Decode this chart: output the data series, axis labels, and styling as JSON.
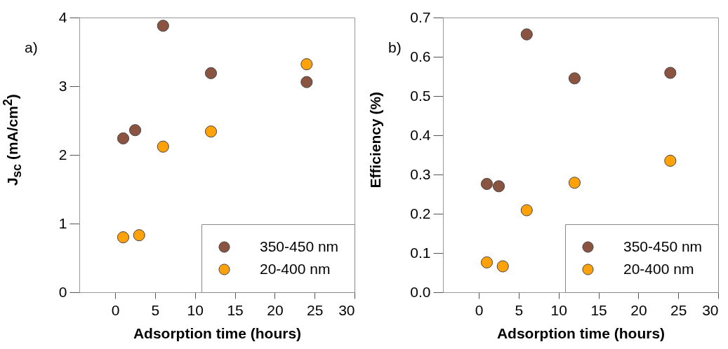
{
  "chart_data": [
    {
      "type": "scatter",
      "title": "a)",
      "xlabel": "Adsorption time (hours)",
      "ylabel": "J$_{sc}$ (mA/cm$^{2}$)",
      "xlim": [
        -4.5,
        30
      ],
      "xticks": [
        0,
        5,
        10,
        15,
        20,
        25,
        30
      ],
      "ylim": [
        0,
        4
      ],
      "yticks": [
        0,
        1,
        2,
        3,
        4
      ],
      "grid": false,
      "legend": "bottom right",
      "marker": "circle",
      "series": [
        {
          "name": "350-450 nm",
          "color": "#8b5440",
          "x": [
            1,
            2.5,
            6,
            12,
            24
          ],
          "values": [
            2.24,
            2.36,
            3.88,
            3.19,
            3.06
          ]
        },
        {
          "name": "20-400 nm",
          "color": "#ffa20a",
          "x": [
            1,
            3,
            6,
            12,
            24
          ],
          "values": [
            0.8,
            0.83,
            2.12,
            2.34,
            3.32
          ]
        }
      ]
    },
    {
      "type": "scatter",
      "title": "b)",
      "xlabel": "Adsorption time (hours)",
      "ylabel": "Efficiency (%)",
      "xlim": [
        -4.5,
        30
      ],
      "xticks": [
        0,
        5,
        10,
        15,
        20,
        25,
        30
      ],
      "ylim": [
        0,
        0.7
      ],
      "yticks": [
        {
          "value": 0,
          "label": "0.0"
        },
        0.1,
        0.2,
        0.3,
        0.4,
        0.5,
        0.6,
        0.7
      ],
      "grid": false,
      "legend": "bottom right",
      "marker": "circle",
      "series": [
        {
          "name": "350-450 nm",
          "color": "#8b5440",
          "x": [
            1,
            2.5,
            6,
            12,
            24
          ],
          "values": [
            0.276,
            0.27,
            0.657,
            0.545,
            0.559
          ]
        },
        {
          "name": "20-400 nm",
          "color": "#ffa20a",
          "x": [
            1,
            3,
            6,
            12,
            24
          ],
          "values": [
            0.076,
            0.066,
            0.209,
            0.279,
            0.335
          ]
        }
      ]
    }
  ]
}
